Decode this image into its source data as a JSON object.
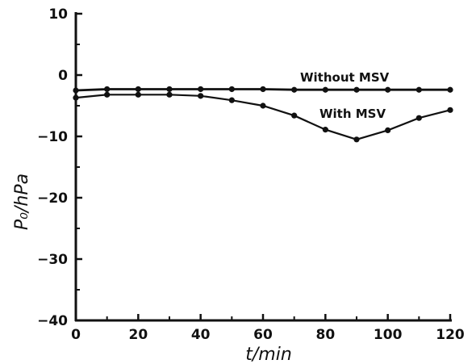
{
  "chart_data": {
    "type": "line",
    "title": "",
    "xlabel": "t/min",
    "ylabel": "P₀/hPa",
    "xlim": [
      0,
      120
    ],
    "ylim": [
      -40,
      10
    ],
    "xticks": [
      "0",
      "20",
      "40",
      "60",
      "80",
      "100",
      "120"
    ],
    "yticks": [
      "10",
      "0",
      "−10",
      "−20",
      "−30",
      "−40"
    ],
    "grid": false,
    "x": [
      0,
      10,
      20,
      30,
      40,
      50,
      60,
      70,
      80,
      90,
      100,
      110,
      120
    ],
    "series": [
      {
        "name": "Without MSV",
        "values": [
          -2.5,
          -2.3,
          -2.3,
          -2.3,
          -2.3,
          -2.3,
          -2.3,
          -2.4,
          -2.4,
          -2.4,
          -2.4,
          -2.4,
          -2.4
        ],
        "marker": "filled-circle",
        "color": "#111111"
      },
      {
        "name": "With MSV",
        "values": [
          -3.7,
          -3.2,
          -3.2,
          -3.2,
          -3.4,
          -4.1,
          -5.0,
          -6.6,
          -8.9,
          -10.5,
          -9.0,
          -7.0,
          -5.7
        ],
        "marker": "filled-circle",
        "color": "#111111"
      }
    ]
  }
}
